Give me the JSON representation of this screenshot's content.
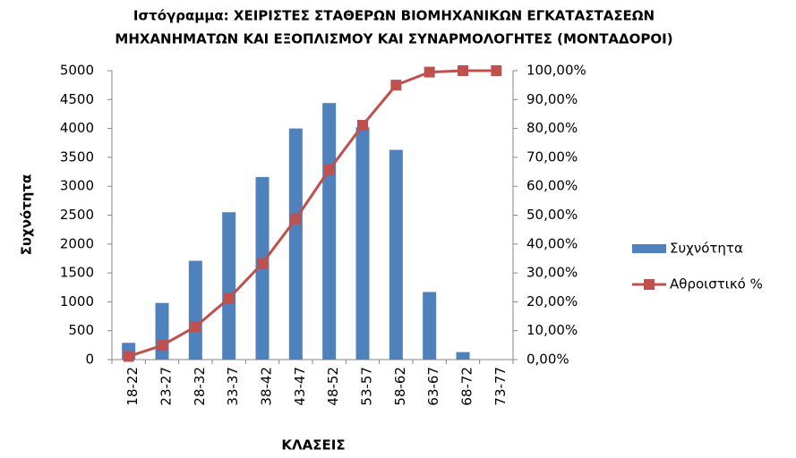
{
  "chart_data": {
    "type": "bar",
    "title": [
      "Ιστόγραμμα: ΧΕΙΡΙΣΤΕΣ ΣΤΑΘΕΡΩΝ ΒΙΟΜΗΧΑΝΙΚΩΝ ΕΓΚΑΤΑΣΤΑΣΕΩΝ",
      "ΜΗΧΑΝΗΜΑΤΩΝ ΚΑΙ ΕΞΟΠΛΙΣΜΟΥ ΚΑΙ ΣΥΝΑΡΜΟΛΟΓΗΤΕΣ (ΜΟΝΤΑΔΟΡΟΙ)"
    ],
    "x_label": "ΚΛΑΣΕΙΣ",
    "y_label": "Συχνότητα",
    "categories": [
      "18-22",
      "23-27",
      "28-32",
      "33-37",
      "38-42",
      "43-47",
      "48-52",
      "53-57",
      "58-62",
      "63-67",
      "68-72",
      "73-77"
    ],
    "series": [
      {
        "name": "Συχνότητα",
        "type": "bar",
        "color": "#4f81bd",
        "values": [
          290,
          980,
          1710,
          2550,
          3160,
          4000,
          4440,
          4020,
          3630,
          1170,
          130,
          0
        ]
      },
      {
        "name": "Αθροιστικό %",
        "type": "line",
        "axis": "y2",
        "color": "#c0504d",
        "values": [
          1.1,
          4.9,
          11.4,
          21.2,
          33.3,
          48.7,
          65.7,
          81.1,
          95.0,
          99.5,
          100,
          100
        ]
      }
    ],
    "ylim": [
      0,
      5000
    ],
    "yticks": [
      0,
      500,
      1000,
      1500,
      2000,
      2500,
      3000,
      3500,
      4000,
      4500,
      5000
    ],
    "y2lim": [
      0,
      100
    ],
    "y2ticks": [
      {
        "value": 0,
        "label": "0,00%"
      },
      {
        "value": 10,
        "label": "10,00%"
      },
      {
        "value": 20,
        "label": "20,00%"
      },
      {
        "value": 30,
        "label": "30,00%"
      },
      {
        "value": 40,
        "label": "40,00%"
      },
      {
        "value": 50,
        "label": "50,00%"
      },
      {
        "value": 60,
        "label": "60,00%"
      },
      {
        "value": 70,
        "label": "70,00%"
      },
      {
        "value": 80,
        "label": "80,00%"
      },
      {
        "value": 90,
        "label": "90,00%"
      },
      {
        "value": 100,
        "label": "100,00%"
      }
    ],
    "grid": false,
    "legend": "right"
  }
}
